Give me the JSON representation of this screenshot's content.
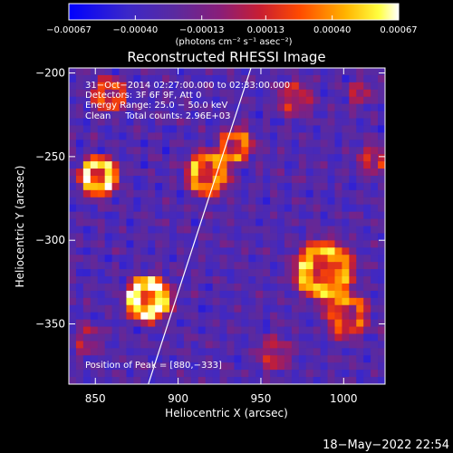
{
  "chart_data": {
    "type": "heatmap",
    "title": "Reconstructed RHESSI Image",
    "xlabel": "Heliocentric X (arcsec)",
    "ylabel": "Heliocentric Y (arcsec)",
    "xlim": [
      834,
      1025
    ],
    "ylim": [
      -386,
      -197
    ],
    "xticks": [
      850,
      900,
      950,
      1000
    ],
    "yticks": [
      -200,
      -250,
      -300,
      -350
    ],
    "xtick_labels": [
      "850",
      "900",
      "950",
      "1000"
    ],
    "ytick_labels": [
      "−200",
      "−250",
      "−300",
      "−350"
    ],
    "colorbar": {
      "min": -0.00067,
      "max": 0.00067,
      "tick_values": [
        -0.00067,
        -0.0004,
        -0.00013,
        0.00013,
        0.0004,
        0.00067
      ],
      "tick_labels": [
        "−0.00067",
        "−0.00040",
        "−0.00013",
        "0.00013",
        "0.00040",
        "0.00067"
      ],
      "unit_label": "(photons cm⁻² s⁻¹ asec⁻²)"
    },
    "annotations": [
      "31−Oct−2014 02:27:00.000 to 02:33:00.000",
      "Detectors: 3F 6F 9F, Att 0",
      "Energy Range: 25.0 − 50.0 keV",
      "Clean     Total counts: 2.96E+03"
    ],
    "peak_label": "Position of Peak = [880,−333]",
    "peak": [
      880,
      -333
    ],
    "limb_line": [
      [
        882,
        -386
      ],
      [
        944,
        -197
      ]
    ],
    "sources": [
      {
        "x": 882,
        "y": -335,
        "amp": 1.0,
        "r": 9
      },
      {
        "x": 852,
        "y": -262,
        "amp": 0.88,
        "r": 8
      },
      {
        "x": 918,
        "y": -260,
        "amp": 0.72,
        "r": 9
      },
      {
        "x": 935,
        "y": -243,
        "amp": 0.6,
        "r": 7
      },
      {
        "x": 988,
        "y": -318,
        "amp": 0.78,
        "r": 12
      },
      {
        "x": 1002,
        "y": -345,
        "amp": 0.55,
        "r": 9
      },
      {
        "x": 858,
        "y": -213,
        "amp": 0.55,
        "r": 7
      },
      {
        "x": 1018,
        "y": -252,
        "amp": 0.42,
        "r": 6
      },
      {
        "x": 970,
        "y": -215,
        "amp": 0.4,
        "r": 7
      },
      {
        "x": 958,
        "y": -368,
        "amp": 0.35,
        "r": 7
      },
      {
        "x": 1010,
        "y": -212,
        "amp": 0.32,
        "r": 5
      },
      {
        "x": 845,
        "y": -360,
        "amp": 0.3,
        "r": 6
      }
    ],
    "grid": false
  },
  "footer": {
    "timestamp": "18−May−2022 22:54"
  }
}
